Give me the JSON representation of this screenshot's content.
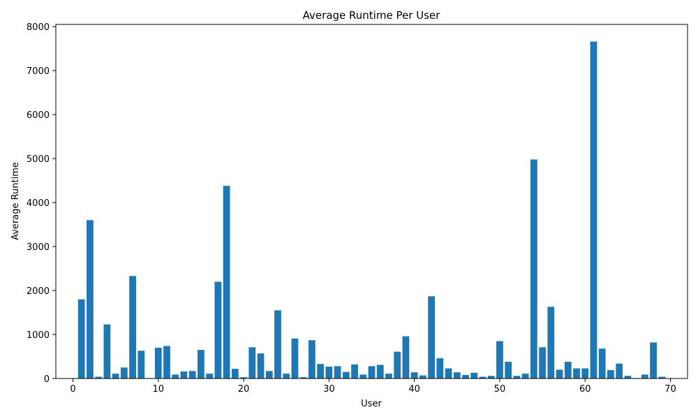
{
  "chart_data": {
    "type": "bar",
    "title": "Average Runtime Per User",
    "xlabel": "User",
    "ylabel": "Average Runtime",
    "xlim": [
      -2,
      72
    ],
    "ylim": [
      0,
      8050
    ],
    "xticks": [
      0,
      10,
      20,
      30,
      40,
      50,
      60,
      70
    ],
    "yticks": [
      0,
      1000,
      2000,
      3000,
      4000,
      5000,
      6000,
      7000,
      8000
    ],
    "grid": false,
    "bar_color": "#1f77b4",
    "x": [
      0,
      1,
      2,
      3,
      4,
      5,
      6,
      7,
      8,
      9,
      10,
      11,
      12,
      13,
      14,
      15,
      16,
      17,
      18,
      19,
      20,
      21,
      22,
      23,
      24,
      25,
      26,
      27,
      28,
      29,
      30,
      31,
      32,
      33,
      34,
      35,
      36,
      37,
      38,
      39,
      40,
      41,
      42,
      43,
      44,
      45,
      46,
      47,
      48,
      49,
      50,
      51,
      52,
      53,
      54,
      55,
      56,
      57,
      58,
      59,
      60,
      61,
      62,
      63,
      64,
      65,
      66,
      67,
      68,
      69
    ],
    "values": [
      0,
      1800,
      3600,
      40,
      1230,
      110,
      250,
      2330,
      630,
      10,
      700,
      740,
      90,
      160,
      170,
      650,
      110,
      2200,
      4380,
      220,
      30,
      710,
      570,
      170,
      1550,
      110,
      910,
      30,
      870,
      330,
      270,
      280,
      150,
      320,
      90,
      280,
      310,
      110,
      610,
      960,
      140,
      70,
      1870,
      460,
      230,
      140,
      80,
      130,
      40,
      60,
      850,
      380,
      60,
      110,
      4980,
      710,
      1630,
      200,
      380,
      230,
      230,
      7660,
      680,
      190,
      340,
      60,
      10,
      90,
      820,
      40
    ]
  }
}
